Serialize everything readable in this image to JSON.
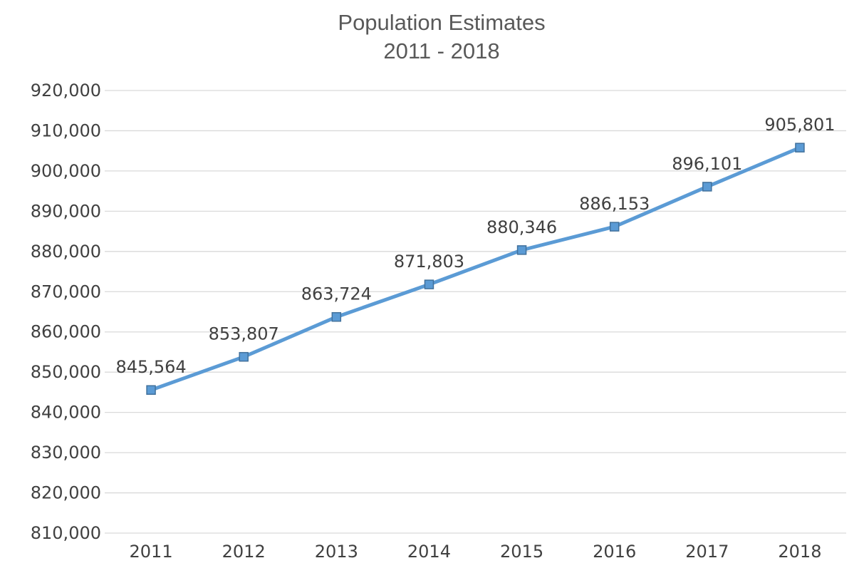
{
  "chart_data": {
    "type": "line",
    "title": "Population Estimates",
    "subtitle": "2011 - 2018",
    "xlabel": "",
    "ylabel": "",
    "categories": [
      "2011",
      "2012",
      "2013",
      "2014",
      "2015",
      "2016",
      "2017",
      "2018"
    ],
    "series": [
      {
        "values": [
          845564,
          853807,
          863724,
          871803,
          880346,
          886153,
          896101,
          905801
        ],
        "data_labels": [
          "845,564",
          "853,807",
          "863,724",
          "871,803",
          "880,346",
          "886,153",
          "896,101",
          "905,801"
        ]
      }
    ],
    "ylim": [
      810000,
      920000
    ],
    "y_ticks": [
      810000,
      820000,
      830000,
      840000,
      850000,
      860000,
      870000,
      880000,
      890000,
      900000,
      910000,
      920000
    ],
    "y_tick_labels": [
      "810,000",
      "820,000",
      "830,000",
      "840,000",
      "850,000",
      "860,000",
      "870,000",
      "880,000",
      "890,000",
      "900,000",
      "910,000",
      "920,000"
    ],
    "grid": true,
    "legend": "none",
    "marker": "square",
    "colors": {
      "line": "#5b9bd5",
      "marker_fill": "#5b9bd5",
      "marker_stroke": "#41719c",
      "grid": "#d9d9d9",
      "text": "#404040",
      "title": "#595959"
    }
  }
}
